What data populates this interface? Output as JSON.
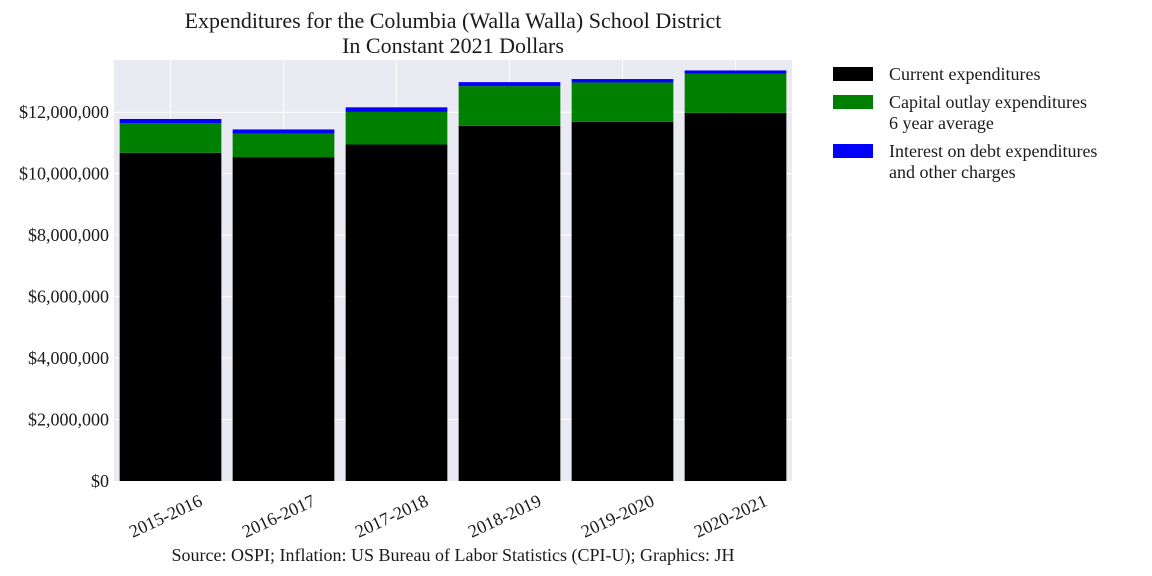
{
  "chart_data": {
    "type": "bar",
    "stacked": true,
    "title": "Expenditures for the Columbia (Walla Walla) School District",
    "subtitle": "In Constant 2021 Dollars",
    "source": "Source: OSPI; Inflation: US Bureau of Labor Statistics (CPI-U); Graphics: JH",
    "categories": [
      "2015-2016",
      "2016-2017",
      "2017-2018",
      "2018-2019",
      "2019-2020",
      "2020-2021"
    ],
    "ylim": [
      0,
      13700000
    ],
    "y_ticks": [
      0,
      2000000,
      4000000,
      6000000,
      8000000,
      10000000,
      12000000
    ],
    "y_tick_labels": [
      "$0",
      "$2,000,000",
      "$4,000,000",
      "$6,000,000",
      "$8,000,000",
      "$10,000,000",
      "$12,000,000"
    ],
    "grid": true,
    "legend_position": "right-outside",
    "series": [
      {
        "name_lines": [
          "Current expenditures"
        ],
        "color": "#000000",
        "values": [
          10680000,
          10540000,
          10950000,
          11560000,
          11690000,
          11980000
        ]
      },
      {
        "name_lines": [
          "Capital outlay expenditures",
          "6 year average"
        ],
        "color": "#008000",
        "values": [
          960000,
          770000,
          1060000,
          1290000,
          1280000,
          1270000
        ]
      },
      {
        "name_lines": [
          "Interest on debt expenditures",
          "and other charges"
        ],
        "color": "#0000ff",
        "values": [
          140000,
          130000,
          150000,
          130000,
          110000,
          110000
        ]
      }
    ]
  }
}
